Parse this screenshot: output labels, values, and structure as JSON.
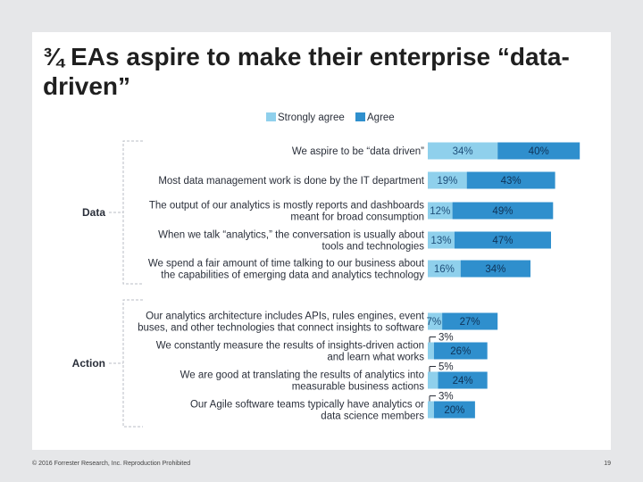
{
  "title": "¾ EAs aspire to make their enterprise “data-driven”",
  "footer": {
    "copyright": "© 2016 Forrester Research, Inc. Reproduction Prohibited",
    "page_number": "19"
  },
  "chart_data": {
    "type": "bar",
    "orientation": "horizontal",
    "stacked": true,
    "legend": {
      "placement": "top-right",
      "entries": [
        "Strongly agree",
        "Agree"
      ]
    },
    "colors": {
      "Strongly agree": "#8fd0ec",
      "Agree": "#2f8fcd"
    },
    "groups": [
      {
        "name": "Data",
        "categories": [
          0,
          1,
          2,
          3,
          4
        ]
      },
      {
        "name": "Action",
        "categories": [
          5,
          6,
          7,
          8
        ]
      }
    ],
    "categories": [
      [
        "We aspire to be “data driven”"
      ],
      [
        "Most data management work is done by the IT department"
      ],
      [
        "The output of our analytics is mostly reports and dashboards",
        "meant for broad consumption"
      ],
      [
        "When we talk “analytics,” the conversation is usually about",
        "tools and technologies"
      ],
      [
        "We spend a fair amount of time talking to our business about",
        "the capabilities of emerging data and analytics technology"
      ],
      [
        "Our analytics architecture includes APIs, rules engines, event",
        "buses, and other technologies that connect insights to software"
      ],
      [
        "We constantly measure the results of insights-driven action",
        "and learn what works"
      ],
      [
        "We are good at translating the results of analytics into",
        "measurable business actions"
      ],
      [
        "Our Agile software teams typically have analytics or",
        "data science members"
      ]
    ],
    "series": [
      {
        "name": "Strongly agree",
        "values": [
          34,
          19,
          12,
          13,
          16,
          7,
          3,
          5,
          3
        ],
        "labels": [
          "34%",
          "19%",
          "12%",
          "13%",
          "16%",
          "7%",
          "3%",
          "5%",
          "3%"
        ]
      },
      {
        "name": "Agree",
        "values": [
          40,
          43,
          49,
          47,
          34,
          27,
          26,
          24,
          20
        ],
        "labels": [
          "40%",
          "43%",
          "49%",
          "47%",
          "34%",
          "27%",
          "26%",
          "24%",
          "20%"
        ]
      }
    ]
  }
}
